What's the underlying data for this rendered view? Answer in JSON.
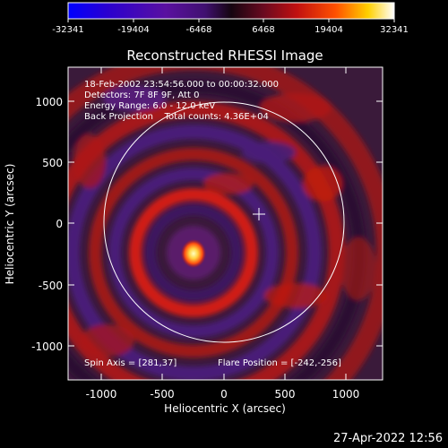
{
  "colorbar": {
    "tick_labels": [
      "-32341",
      "-19404",
      "-6468",
      "6468",
      "19404",
      "32341"
    ]
  },
  "title": "Reconstructed RHESSI Image",
  "info_lines": [
    "18-Feb-2002 23:54:56.000 to 00:00:32.000",
    "Detectors: 7F 8F 9F, Att 0",
    "Energy Range: 6.0 - 12.0 keV",
    "Back Projection    Total counts: 4.36E+04"
  ],
  "bottom_left_text": "Spin Axis = [281,37]",
  "bottom_right_text": "Flare Position = [-242,-256]",
  "axes": {
    "x_label": "Heliocentric X (arcsec)",
    "y_label": "Heliocentric Y (arcsec)",
    "x_ticks": [
      "-1000",
      "-500",
      "0",
      "500",
      "1000"
    ],
    "y_ticks": [
      "1000",
      "500",
      "0",
      "-500",
      "-1000"
    ]
  },
  "footer_timestamp": "27-Apr-2022 12:56",
  "colors": {
    "background": "#000000",
    "plot_bg": "#3a1a3a",
    "ring_red": "#c01a10",
    "ring_dark": "#2b1030",
    "purple": "#4a1c78",
    "hot": "#fff090",
    "limb": "#ffffff"
  }
}
